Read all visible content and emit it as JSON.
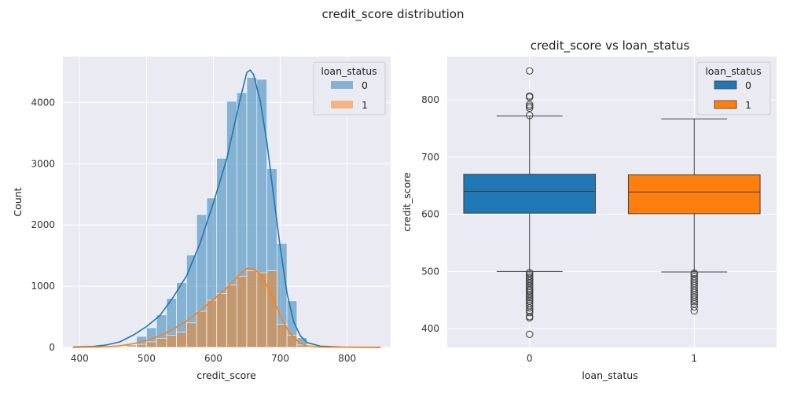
{
  "figure": {
    "suptitle": "credit_score distribution"
  },
  "chart_data": [
    {
      "type": "histogram",
      "title": "",
      "xlabel": "credit_score",
      "ylabel": "Count",
      "xlim": [
        375,
        865
      ],
      "ylim": [
        0,
        4750
      ],
      "xticks": [
        400,
        500,
        600,
        700,
        800
      ],
      "yticks": [
        0,
        1000,
        2000,
        3000,
        4000
      ],
      "grid": true,
      "legend": {
        "title": "loan_status",
        "placement": "top-right",
        "entries": [
          "0",
          "1"
        ]
      },
      "bin_edges": [
        470,
        485,
        500,
        515,
        530,
        545,
        560,
        575,
        590,
        605,
        620,
        635,
        650,
        665,
        680,
        695,
        710,
        725,
        740
      ],
      "series": [
        {
          "name": "0",
          "color": "#1f77b4",
          "counts": [
            40,
            180,
            320,
            530,
            800,
            1060,
            1510,
            2170,
            2440,
            3090,
            4020,
            4160,
            4410,
            4380,
            2920,
            1700,
            760,
            160
          ],
          "kde": {
            "x": [
              390,
              420,
              440,
              460,
              480,
              500,
              520,
              540,
              560,
              580,
              600,
              620,
              640,
              650,
              655,
              660,
              670,
              680,
              690,
              700,
              710,
              720,
              730,
              740,
              760,
              790,
              850
            ],
            "y": [
              5,
              15,
              40,
              90,
              200,
              340,
              520,
              820,
              1170,
              1700,
              2360,
              3080,
              4050,
              4490,
              4530,
              4460,
              4030,
              3350,
              2470,
              1630,
              890,
              420,
              190,
              80,
              20,
              5,
              0
            ]
          }
        },
        {
          "name": "1",
          "color": "#ff7f0e",
          "counts": [
            10,
            50,
            90,
            150,
            200,
            250,
            400,
            590,
            770,
            880,
            1020,
            1160,
            1250,
            1220,
            1250,
            380,
            200,
            40
          ],
          "kde": {
            "x": [
              390,
              440,
              460,
              480,
              500,
              520,
              540,
              560,
              580,
              600,
              620,
              640,
              650,
              660,
              670,
              680,
              690,
              700,
              710,
              720,
              730,
              740,
              760,
              850
            ],
            "y": [
              0,
              10,
              25,
              60,
              110,
              190,
              300,
              430,
              600,
              780,
              970,
              1200,
              1290,
              1280,
              1200,
              1010,
              780,
              520,
              310,
              160,
              70,
              25,
              5,
              0
            ]
          }
        }
      ]
    },
    {
      "type": "box",
      "title": "credit_score vs loan_status",
      "xlabel": "loan_status",
      "ylabel": "credit_score",
      "categories": [
        "0",
        "1"
      ],
      "ylim": [
        367,
        876
      ],
      "yticks": [
        400,
        500,
        600,
        700,
        800
      ],
      "grid": true,
      "legend": {
        "title": "loan_status",
        "placement": "top-right",
        "entries": [
          "0",
          "1"
        ]
      },
      "series": [
        {
          "name": "0",
          "color": "#1f77b4",
          "whisker_low": 500,
          "q1": 602,
          "median": 640,
          "q3": 670,
          "whisker_high": 772,
          "outliers": [
            390,
            419,
            421,
            428,
            432,
            436,
            440,
            444,
            448,
            451,
            454,
            457,
            460,
            463,
            466,
            468,
            471,
            474,
            477,
            480,
            483,
            486,
            489,
            492,
            495,
            498,
            773,
            786,
            789,
            792,
            805,
            807,
            851
          ]
        },
        {
          "name": "1",
          "color": "#ff7f0e",
          "whisker_low": 499,
          "q1": 601,
          "median": 639,
          "q3": 669,
          "whisker_high": 767,
          "outliers": [
            431,
            438,
            443,
            447,
            451,
            455,
            459,
            463,
            467,
            471,
            475,
            479,
            483,
            487,
            491,
            495,
            497
          ]
        }
      ]
    }
  ]
}
